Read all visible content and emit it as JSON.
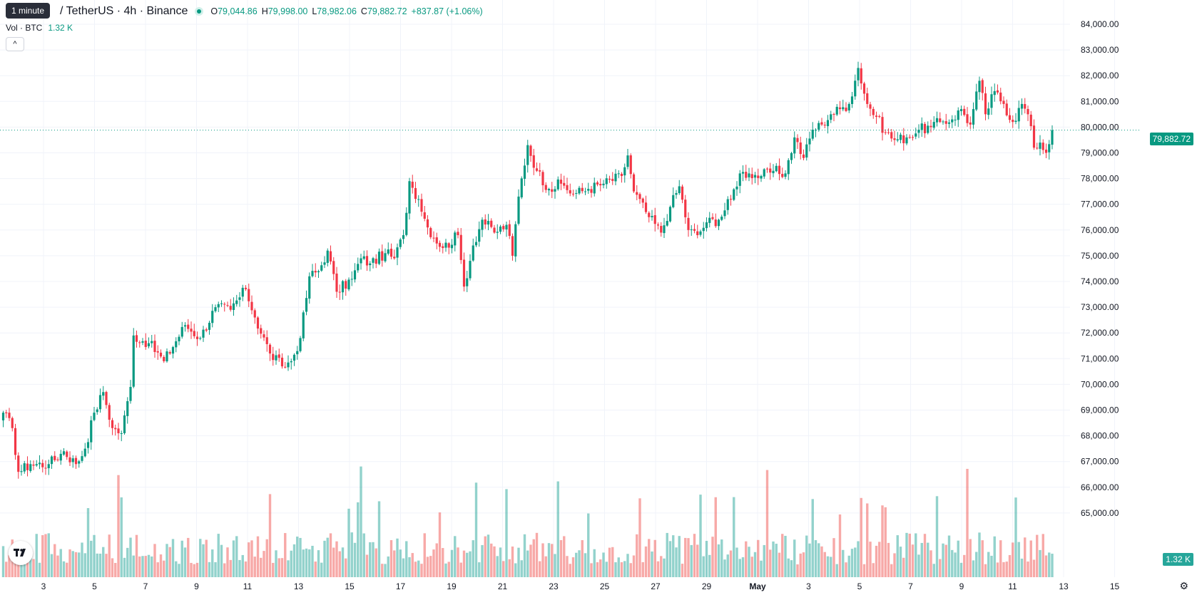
{
  "tooltip": "1 minute",
  "symbol": "/ TetherUS · 4h · Binance",
  "ohlc": {
    "o_label": "O",
    "o": "79,044.86",
    "h_label": "H",
    "h": "79,998.00",
    "l_label": "L",
    "l": "78,982.06",
    "c_label": "C",
    "c": "79,882.72",
    "change": "+837.87 (+1.06%)"
  },
  "volume_legend": {
    "label": "Vol · BTC",
    "value": "1.32 K"
  },
  "collapse_icon": "chevron-up-icon",
  "last_price_tag": "79,882.72",
  "volume_tag": "1.32 K",
  "settings_icon": "gear-icon",
  "colors": {
    "up": "#089981",
    "down": "#f23645",
    "vol_up": "#26a69a",
    "vol_down": "#ef5350"
  },
  "chart_data": {
    "type": "candlestick",
    "y_ticks": [
      "84,000.00",
      "83,000.00",
      "82,000.00",
      "81,000.00",
      "80,000.00",
      "79,000.00",
      "78,000.00",
      "77,000.00",
      "76,000.00",
      "75,000.00",
      "74,000.00",
      "73,000.00",
      "72,000.00",
      "71,000.00",
      "70,000.00",
      "69,000.00",
      "68,000.00",
      "67,000.00",
      "66,000.00",
      "65,000.00"
    ],
    "x_ticks": [
      "3",
      "5",
      "7",
      "9",
      "11",
      "13",
      "15",
      "17",
      "19",
      "21",
      "23",
      "25",
      "27",
      "29",
      "May",
      "3",
      "5",
      "7",
      "9",
      "11",
      "13",
      "15"
    ],
    "ylim": [
      64500,
      84200
    ],
    "last_price": 79882.72,
    "close_anchors": [
      [
        0,
        68900
      ],
      [
        3,
        68300
      ],
      [
        5,
        66600
      ],
      [
        9,
        66900
      ],
      [
        15,
        66900
      ],
      [
        20,
        67400
      ],
      [
        24,
        66900
      ],
      [
        27,
        67500
      ],
      [
        30,
        68900
      ],
      [
        33,
        69700
      ],
      [
        36,
        68300
      ],
      [
        39,
        68100
      ],
      [
        42,
        69900
      ],
      [
        43,
        71900
      ],
      [
        48,
        71600
      ],
      [
        53,
        70900
      ],
      [
        60,
        72300
      ],
      [
        65,
        71800
      ],
      [
        70,
        73000
      ],
      [
        75,
        72900
      ],
      [
        80,
        73700
      ],
      [
        83,
        72600
      ],
      [
        88,
        71200
      ],
      [
        92,
        70700
      ],
      [
        95,
        70900
      ],
      [
        98,
        71800
      ],
      [
        101,
        74200
      ],
      [
        104,
        74400
      ],
      [
        107,
        75200
      ],
      [
        110,
        73600
      ],
      [
        115,
        74100
      ],
      [
        118,
        74900
      ],
      [
        121,
        74700
      ],
      [
        126,
        75100
      ],
      [
        129,
        74900
      ],
      [
        132,
        75800
      ],
      [
        134,
        77900
      ],
      [
        137,
        77200
      ],
      [
        140,
        76100
      ],
      [
        145,
        75300
      ],
      [
        150,
        75800
      ],
      [
        152,
        73800
      ],
      [
        155,
        75400
      ],
      [
        158,
        76400
      ],
      [
        162,
        75900
      ],
      [
        166,
        76200
      ],
      [
        168,
        75000
      ],
      [
        170,
        77300
      ],
      [
        173,
        79300
      ],
      [
        176,
        78300
      ],
      [
        180,
        77600
      ],
      [
        184,
        77800
      ],
      [
        188,
        77400
      ],
      [
        193,
        77600
      ],
      [
        198,
        77800
      ],
      [
        204,
        78100
      ],
      [
        206,
        78900
      ],
      [
        208,
        77500
      ],
      [
        213,
        76500
      ],
      [
        217,
        75900
      ],
      [
        220,
        76900
      ],
      [
        223,
        77700
      ],
      [
        226,
        76000
      ],
      [
        229,
        75800
      ],
      [
        232,
        76300
      ],
      [
        236,
        76400
      ],
      [
        240,
        77200
      ],
      [
        243,
        78200
      ],
      [
        246,
        78200
      ],
      [
        250,
        78100
      ],
      [
        254,
        78300
      ],
      [
        258,
        78200
      ],
      [
        261,
        79600
      ],
      [
        264,
        78800
      ],
      [
        267,
        79900
      ],
      [
        270,
        80100
      ],
      [
        273,
        80500
      ],
      [
        276,
        80700
      ],
      [
        279,
        80900
      ],
      [
        282,
        82300
      ],
      [
        285,
        80900
      ],
      [
        288,
        80400
      ],
      [
        291,
        79800
      ],
      [
        294,
        79500
      ],
      [
        298,
        79600
      ],
      [
        302,
        79900
      ],
      [
        306,
        80000
      ],
      [
        309,
        80200
      ],
      [
        313,
        80300
      ],
      [
        316,
        80700
      ],
      [
        319,
        80100
      ],
      [
        322,
        81800
      ],
      [
        324,
        80500
      ],
      [
        327,
        81400
      ],
      [
        330,
        80900
      ],
      [
        333,
        80200
      ],
      [
        336,
        80900
      ],
      [
        338,
        80500
      ],
      [
        340,
        79200
      ],
      [
        342,
        79400
      ],
      [
        344,
        79000
      ],
      [
        346,
        79882.72
      ]
    ]
  }
}
